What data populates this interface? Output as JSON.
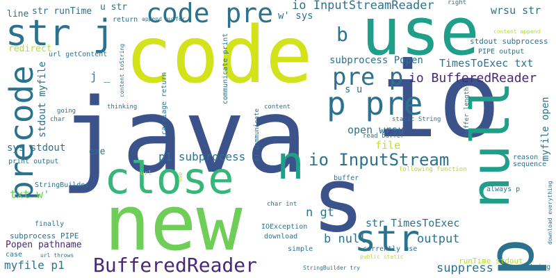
{
  "words": [
    {
      "text": "java",
      "color": "#3b528b",
      "rotated": false
    },
    {
      "text": "io",
      "color": "#3b528b",
      "rotated": false
    },
    {
      "text": "code",
      "color": "#d2e21b",
      "rotated": false
    },
    {
      "text": "use",
      "color": "#1f9e89",
      "rotated": false
    },
    {
      "text": "new",
      "color": "#6ece58",
      "rotated": false
    },
    {
      "text": "null",
      "color": "#1f9e89",
      "rotated": true
    },
    {
      "text": "s",
      "color": "#3b528b",
      "rotated": false
    },
    {
      "text": "p",
      "color": "#2c728e",
      "rotated": true
    },
    {
      "text": "close",
      "color": "#35b779",
      "rotated": false
    },
    {
      "text": "n",
      "color": "#1f9e89",
      "rotated": false
    },
    {
      "text": "str j",
      "color": "#2c728e",
      "rotated": false
    },
    {
      "text": "code pre",
      "color": "#2c728e",
      "rotated": false
    },
    {
      "text": "precode",
      "color": "#2c728e",
      "rotated": true
    },
    {
      "text": "p pre",
      "color": "#2c728e",
      "rotated": false
    },
    {
      "text": "pre p",
      "color": "#2c728e",
      "rotated": false
    },
    {
      "text": "str",
      "color": "#2c728e",
      "rotated": false
    },
    {
      "text": "BufferedReader",
      "color": "#482878",
      "rotated": false
    },
    {
      "text": "io InputStream",
      "color": "#2c728e",
      "rotated": false
    },
    {
      "text": "io BufferedReader",
      "color": "#482878",
      "rotated": false
    },
    {
      "text": "io InputStreamReader",
      "color": "#2c728e",
      "rotated": false
    },
    {
      "text": "b",
      "color": "#2c728e",
      "rotated": false
    },
    {
      "text": "wrsu str",
      "color": "#2c728e",
      "rotated": false
    },
    {
      "text": "subprocess Popen",
      "color": "#2c728e",
      "rotated": false
    },
    {
      "text": "TimesToExec txt",
      "color": "#2c728e",
      "rotated": false
    },
    {
      "text": "p1 subprocess",
      "color": "#2c728e",
      "rotated": false
    },
    {
      "text": "str TimesToExec",
      "color": "#2c728e",
      "rotated": false
    },
    {
      "text": "b null",
      "color": "#2c728e",
      "rotated": false
    },
    {
      "text": "n gt",
      "color": "#2c728e",
      "rotated": false
    },
    {
      "text": "open wrsu",
      "color": "#2c728e",
      "rotated": false
    },
    {
      "text": "file",
      "color": "#c2df23",
      "rotated": false
    },
    {
      "text": "output",
      "color": "#2c728e",
      "rotated": false
    },
    {
      "text": "suppress",
      "color": "#2c728e",
      "rotated": false
    },
    {
      "text": "s u",
      "color": "#2c728e",
      "rotated": false
    },
    {
      "text": "myfile p1",
      "color": "#2c728e",
      "rotated": false
    },
    {
      "text": "Popen pathname",
      "color": "#482878",
      "rotated": false
    },
    {
      "text": "txt w'",
      "color": "#6ece58",
      "rotated": false
    },
    {
      "text": "sys stdout",
      "color": "#2c728e",
      "rotated": false
    },
    {
      "text": "stdout myfile",
      "color": "#2c728e",
      "rotated": true
    },
    {
      "text": "exe",
      "color": "#2c728e",
      "rotated": false
    },
    {
      "text": "j _",
      "color": "#2c728e",
      "rotated": false
    },
    {
      "text": "w' sys",
      "color": "#2c728e",
      "rotated": false
    },
    {
      "text": "myfile open",
      "color": "#2c728e",
      "rotated": true
    },
    {
      "text": "line",
      "color": "#2c728e",
      "rotated": false
    },
    {
      "text": "str runTime",
      "color": "#2c728e",
      "rotated": false
    },
    {
      "text": "u str",
      "color": "#2c728e",
      "rotated": false
    },
    {
      "text": "redirect",
      "color": "#b5de2b",
      "rotated": false
    },
    {
      "text": "url getContent",
      "color": "#2c728e",
      "rotated": false
    },
    {
      "text": "subprocess PIPE",
      "color": "#2c728e",
      "rotated": false
    },
    {
      "text": "print output",
      "color": "#2c728e",
      "rotated": false
    },
    {
      "text": "StringBuilder",
      "color": "#2c728e",
      "rotated": false
    },
    {
      "text": "runTime stdout",
      "color": "#b5de2b",
      "rotated": false
    },
    {
      "text": "stdout subprocess",
      "color": "#2c728e",
      "rotated": false
    },
    {
      "text": "PIPE output",
      "color": "#2c728e",
      "rotated": false
    },
    {
      "text": "content append",
      "color": "#b5de2b",
      "rotated": false
    },
    {
      "text": "sequence",
      "color": "#2c728e",
      "rotated": false
    },
    {
      "text": "reason",
      "color": "#2c728e",
      "rotated": false
    },
    {
      "text": "right",
      "color": "#2c728e",
      "rotated": false
    },
    {
      "text": "append buffer",
      "color": "#2c728e",
      "rotated": false
    },
    {
      "text": "return",
      "color": "#2c728e",
      "rotated": false
    },
    {
      "text": "content toString",
      "color": "#2c728e",
      "rotated": true
    },
    {
      "text": "carriage return",
      "color": "#2c728e",
      "rotated": true
    },
    {
      "text": "communicate print",
      "color": "#2c728e",
      "rotated": true
    },
    {
      "text": "thinking",
      "color": "#2c728e",
      "rotated": false
    },
    {
      "text": "going",
      "color": "#2c728e",
      "rotated": false
    },
    {
      "text": "char",
      "color": "#2c728e",
      "rotated": false
    },
    {
      "text": "content",
      "color": "#2c728e",
      "rotated": false
    },
    {
      "text": "static String",
      "color": "#2c728e",
      "rotated": false
    },
    {
      "text": "read buffer",
      "color": "#2c728e",
      "rotated": false
    },
    {
      "text": "buffer length",
      "color": "#2c728e",
      "rotated": true
    },
    {
      "text": "following function",
      "color": "#b5de2b",
      "rotated": false
    },
    {
      "text": "always p",
      "color": "#2c728e",
      "rotated": false
    },
    {
      "text": "p1 communicate",
      "color": "#2c728e",
      "rotated": true
    },
    {
      "text": "buffer",
      "color": "#2c728e",
      "rotated": false
    },
    {
      "text": "char int",
      "color": "#2c728e",
      "rotated": false
    },
    {
      "text": "IOException",
      "color": "#2c728e",
      "rotated": false
    },
    {
      "text": "currently use",
      "color": "#2c728e",
      "rotated": false
    },
    {
      "text": "public static",
      "color": "#b5de2b",
      "rotated": false
    },
    {
      "text": "download",
      "color": "#2c728e",
      "rotated": false
    },
    {
      "text": "simple",
      "color": "#2c728e",
      "rotated": false
    },
    {
      "text": "StringBuilder try",
      "color": "#2c728e",
      "rotated": false
    },
    {
      "text": "String",
      "color": "#2c728e",
      "rotated": false
    },
    {
      "text": "download everything",
      "color": "#2c728e",
      "rotated": true
    },
    {
      "text": "url",
      "color": "#b5de2b",
      "rotated": false
    },
    {
      "text": "see",
      "color": "#b5de2b",
      "rotated": true
    },
    {
      "text": "finally",
      "color": "#2c728e",
      "rotated": false
    },
    {
      "text": "case",
      "color": "#2c728e",
      "rotated": false
    },
    {
      "text": "url throws",
      "color": "#2c728e",
      "rotated": false
    }
  ]
}
